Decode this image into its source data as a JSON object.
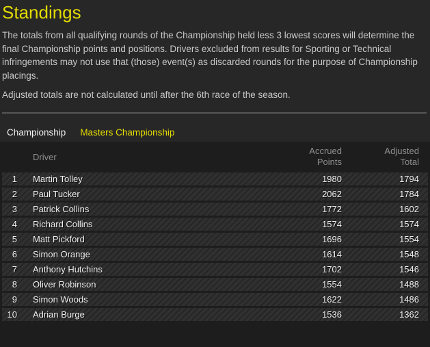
{
  "page": {
    "title": "Standings",
    "description": "The totals from all qualifying rounds of the Championship held less 3 lowest scores will determine the final Championship points and positions. Drivers excluded from results for Sporting or Technical infringements may not use that (those) event(s) as discarded rounds for the purpose of Championship placings.",
    "note": "Adjusted totals are not calculated until after the 6th race of the season."
  },
  "tabs": {
    "championship": {
      "label": "Championship",
      "active": true
    },
    "masters": {
      "label": "Masters Championship",
      "active": false
    }
  },
  "standings_table": {
    "headers": {
      "driver": "Driver",
      "accrued_line1": "Accrued",
      "accrued_line2": "Points",
      "adjusted_line1": "Adjusted",
      "adjusted_line2": "Total"
    },
    "rows": [
      {
        "pos": "1",
        "driver": "Martin Tolley",
        "accrued": "1980",
        "adjusted": "1794"
      },
      {
        "pos": "2",
        "driver": "Paul Tucker",
        "accrued": "2062",
        "adjusted": "1784"
      },
      {
        "pos": "3",
        "driver": "Patrick Collins",
        "accrued": "1772",
        "adjusted": "1602"
      },
      {
        "pos": "4",
        "driver": "Richard Collins",
        "accrued": "1574",
        "adjusted": "1574"
      },
      {
        "pos": "5",
        "driver": "Matt Pickford",
        "accrued": "1696",
        "adjusted": "1554"
      },
      {
        "pos": "6",
        "driver": "Simon Orange",
        "accrued": "1614",
        "adjusted": "1548"
      },
      {
        "pos": "7",
        "driver": "Anthony Hutchins",
        "accrued": "1702",
        "adjusted": "1546"
      },
      {
        "pos": "8",
        "driver": "Oliver Robinson",
        "accrued": "1554",
        "adjusted": "1488"
      },
      {
        "pos": "9",
        "driver": "Simon Woods",
        "accrued": "1622",
        "adjusted": "1486"
      },
      {
        "pos": "10",
        "driver": "Adrian Burge",
        "accrued": "1536",
        "adjusted": "1362"
      }
    ]
  },
  "colors": {
    "accent_yellow": "#e6dc00",
    "page_background": "#272727",
    "table_background": "#1d1d1d",
    "row_stripe_light": "#303030",
    "row_stripe_dark": "#252525",
    "divider": "#565656",
    "body_text": "#c9c9c9",
    "header_text": "#8f8f8f",
    "row_text": "#f1f1f1"
  }
}
